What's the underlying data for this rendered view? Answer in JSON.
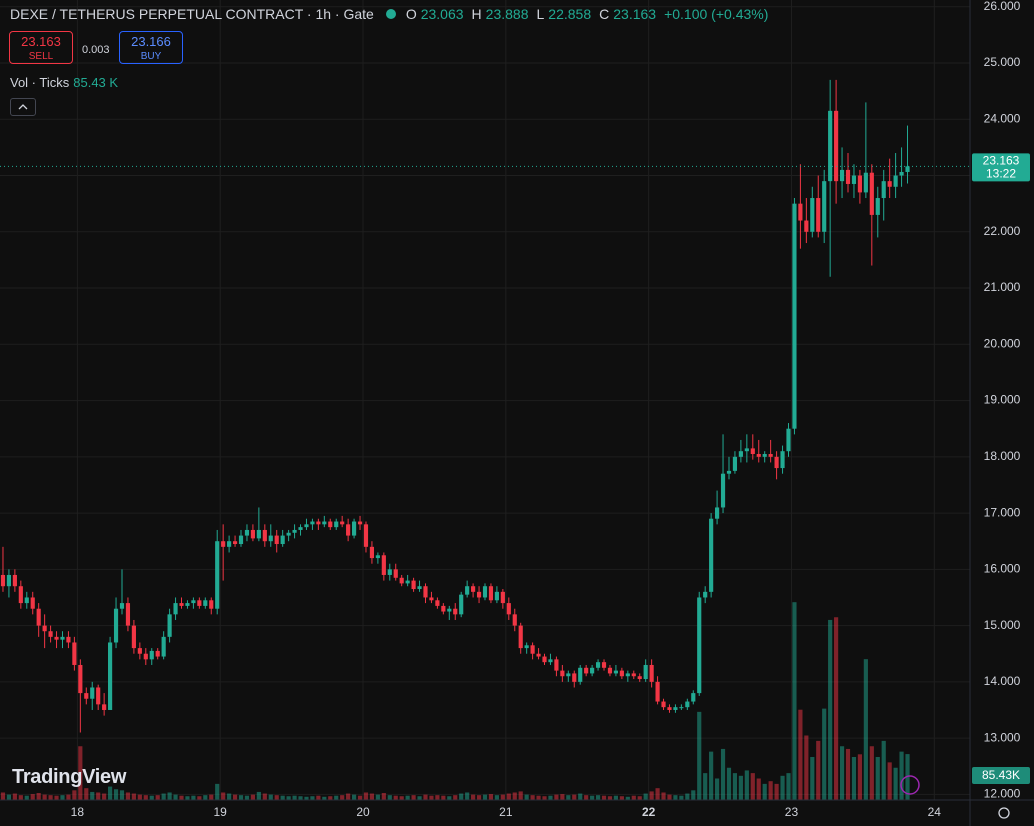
{
  "chart_data": {
    "type": "candlestick",
    "title": "DEXE / TETHERUS PERPETUAL CONTRACT · 1h · Gate",
    "ohlc_labels": [
      "O",
      "H",
      "L",
      "C"
    ],
    "change": "+0.100 (+0.43%)",
    "sell_price": 23.163,
    "sell_label": "SELL",
    "spread": 0.003,
    "buy_price": 23.166,
    "buy_label": "BUY",
    "volume_title": "Vol · Ticks",
    "volume_legend_value": "85.43 K",
    "volume_axis_label": "85.43K",
    "countdown": "13:22",
    "logo": "TradingView",
    "up_color": "#22ab94",
    "down_color": "#f23645",
    "grid": true,
    "xlim": [
      -0.5,
      162.5
    ],
    "xticks": [
      {
        "value": 12.5,
        "label": "18"
      },
      {
        "value": 36.5,
        "label": "19"
      },
      {
        "value": 60.5,
        "label": "20"
      },
      {
        "value": 84.5,
        "label": "21"
      },
      {
        "value": 108.5,
        "label": "22"
      },
      {
        "value": 132.5,
        "label": "23"
      },
      {
        "value": 156.5,
        "label": "24"
      }
    ],
    "ylim": [
      11.9,
      26.12
    ],
    "yticks": [
      {
        "value": 12,
        "label": "12.000"
      },
      {
        "value": 13,
        "label": "13.000"
      },
      {
        "value": 14,
        "label": "14.000"
      },
      {
        "value": 15,
        "label": "15.000"
      },
      {
        "value": 16,
        "label": "16.000"
      },
      {
        "value": 17,
        "label": "17.000"
      },
      {
        "value": 18,
        "label": "18.000"
      },
      {
        "value": 19,
        "label": "19.000"
      },
      {
        "value": 20,
        "label": "20.000"
      },
      {
        "value": 21,
        "label": "21.000"
      },
      {
        "value": 22,
        "label": "22.000"
      },
      {
        "value": 23,
        "label": "23.000"
      },
      {
        "value": 24,
        "label": "24.000"
      },
      {
        "value": 25,
        "label": "25.000"
      },
      {
        "value": 26,
        "label": "26.000"
      }
    ],
    "vlim": [
      0,
      400
    ],
    "ohlc": [
      [
        15.9,
        16.4,
        15.6,
        15.7
      ],
      [
        15.7,
        16.0,
        15.5,
        15.9
      ],
      [
        15.9,
        16.0,
        15.6,
        15.7
      ],
      [
        15.7,
        15.8,
        15.3,
        15.4
      ],
      [
        15.4,
        15.6,
        15.3,
        15.5
      ],
      [
        15.5,
        15.6,
        15.2,
        15.3
      ],
      [
        15.3,
        15.4,
        14.8,
        15.0
      ],
      [
        15.0,
        15.2,
        14.6,
        14.9
      ],
      [
        14.9,
        15.0,
        14.7,
        14.8
      ],
      [
        14.8,
        14.9,
        14.6,
        14.75
      ],
      [
        14.75,
        14.9,
        14.6,
        14.8
      ],
      [
        14.8,
        14.9,
        14.6,
        14.7
      ],
      [
        14.7,
        14.8,
        14.2,
        14.3
      ],
      [
        14.3,
        14.4,
        13.1,
        13.8
      ],
      [
        13.8,
        13.9,
        13.6,
        13.7
      ],
      [
        13.7,
        14.0,
        13.5,
        13.9
      ],
      [
        13.9,
        13.95,
        13.5,
        13.6
      ],
      [
        13.6,
        13.8,
        13.4,
        13.5
      ],
      [
        13.5,
        14.8,
        13.5,
        14.7
      ],
      [
        14.7,
        15.5,
        14.6,
        15.3
      ],
      [
        15.3,
        16.0,
        15.2,
        15.4
      ],
      [
        15.4,
        15.5,
        14.9,
        15.0
      ],
      [
        15.0,
        15.1,
        14.5,
        14.6
      ],
      [
        14.6,
        14.7,
        14.4,
        14.5
      ],
      [
        14.5,
        14.6,
        14.3,
        14.4
      ],
      [
        14.4,
        14.6,
        14.3,
        14.55
      ],
      [
        14.55,
        14.6,
        14.4,
        14.45
      ],
      [
        14.45,
        14.9,
        14.4,
        14.8
      ],
      [
        14.8,
        15.3,
        14.7,
        15.2
      ],
      [
        15.2,
        15.5,
        15.1,
        15.4
      ],
      [
        15.4,
        15.5,
        15.3,
        15.35
      ],
      [
        15.35,
        15.45,
        15.3,
        15.4
      ],
      [
        15.4,
        15.5,
        15.3,
        15.45
      ],
      [
        15.45,
        15.5,
        15.3,
        15.35
      ],
      [
        15.35,
        15.5,
        15.3,
        15.45
      ],
      [
        15.45,
        15.5,
        15.2,
        15.3
      ],
      [
        15.3,
        16.7,
        15.2,
        16.5
      ],
      [
        16.5,
        16.8,
        15.8,
        16.4
      ],
      [
        16.4,
        16.6,
        16.3,
        16.5
      ],
      [
        16.5,
        16.6,
        16.4,
        16.45
      ],
      [
        16.45,
        16.7,
        16.4,
        16.6
      ],
      [
        16.6,
        16.8,
        16.5,
        16.7
      ],
      [
        16.7,
        16.8,
        16.5,
        16.55
      ],
      [
        16.55,
        17.1,
        16.5,
        16.7
      ],
      [
        16.7,
        16.8,
        16.4,
        16.5
      ],
      [
        16.5,
        16.8,
        16.4,
        16.6
      ],
      [
        16.6,
        16.7,
        16.3,
        16.45
      ],
      [
        16.45,
        16.7,
        16.4,
        16.6
      ],
      [
        16.6,
        16.7,
        16.5,
        16.65
      ],
      [
        16.65,
        16.8,
        16.55,
        16.7
      ],
      [
        16.7,
        16.8,
        16.6,
        16.75
      ],
      [
        16.75,
        16.9,
        16.7,
        16.8
      ],
      [
        16.8,
        16.9,
        16.7,
        16.85
      ],
      [
        16.85,
        16.9,
        16.7,
        16.8
      ],
      [
        16.8,
        16.95,
        16.75,
        16.85
      ],
      [
        16.85,
        16.9,
        16.7,
        16.75
      ],
      [
        16.75,
        16.9,
        16.7,
        16.85
      ],
      [
        16.85,
        16.95,
        16.75,
        16.8
      ],
      [
        16.8,
        16.9,
        16.5,
        16.6
      ],
      [
        16.6,
        16.9,
        16.55,
        16.85
      ],
      [
        16.85,
        16.95,
        16.7,
        16.8
      ],
      [
        16.8,
        16.85,
        16.3,
        16.4
      ],
      [
        16.4,
        16.5,
        16.1,
        16.2
      ],
      [
        16.2,
        16.3,
        16.1,
        16.25
      ],
      [
        16.25,
        16.3,
        15.8,
        15.9
      ],
      [
        15.9,
        16.1,
        15.8,
        16.0
      ],
      [
        16.0,
        16.1,
        15.8,
        15.85
      ],
      [
        15.85,
        15.9,
        15.7,
        15.75
      ],
      [
        15.75,
        15.9,
        15.7,
        15.8
      ],
      [
        15.8,
        15.85,
        15.6,
        15.65
      ],
      [
        15.65,
        15.8,
        15.6,
        15.7
      ],
      [
        15.7,
        15.75,
        15.4,
        15.5
      ],
      [
        15.5,
        15.6,
        15.4,
        15.45
      ],
      [
        15.45,
        15.5,
        15.3,
        15.35
      ],
      [
        15.35,
        15.4,
        15.2,
        15.25
      ],
      [
        15.25,
        15.35,
        15.1,
        15.3
      ],
      [
        15.3,
        15.4,
        15.1,
        15.2
      ],
      [
        15.2,
        15.6,
        15.15,
        15.55
      ],
      [
        15.55,
        15.8,
        15.5,
        15.7
      ],
      [
        15.7,
        15.75,
        15.5,
        15.6
      ],
      [
        15.6,
        15.7,
        15.4,
        15.5
      ],
      [
        15.5,
        15.75,
        15.45,
        15.7
      ],
      [
        15.7,
        15.75,
        15.4,
        15.45
      ],
      [
        15.45,
        15.7,
        15.4,
        15.6
      ],
      [
        15.6,
        15.65,
        15.3,
        15.4
      ],
      [
        15.4,
        15.5,
        15.1,
        15.2
      ],
      [
        15.2,
        15.3,
        14.9,
        15.0
      ],
      [
        15.0,
        15.05,
        14.5,
        14.6
      ],
      [
        14.6,
        14.7,
        14.5,
        14.65
      ],
      [
        14.65,
        14.7,
        14.4,
        14.5
      ],
      [
        14.5,
        14.6,
        14.4,
        14.45
      ],
      [
        14.45,
        14.5,
        14.3,
        14.35
      ],
      [
        14.35,
        14.5,
        14.3,
        14.4
      ],
      [
        14.4,
        14.45,
        14.1,
        14.2
      ],
      [
        14.2,
        14.3,
        14.0,
        14.1
      ],
      [
        14.1,
        14.2,
        14.0,
        14.15
      ],
      [
        14.15,
        14.2,
        13.9,
        14.0
      ],
      [
        14.0,
        14.3,
        13.95,
        14.25
      ],
      [
        14.25,
        14.3,
        14.1,
        14.15
      ],
      [
        14.15,
        14.3,
        14.1,
        14.25
      ],
      [
        14.25,
        14.4,
        14.2,
        14.35
      ],
      [
        14.35,
        14.4,
        14.2,
        14.25
      ],
      [
        14.25,
        14.3,
        14.1,
        14.15
      ],
      [
        14.15,
        14.3,
        14.1,
        14.2
      ],
      [
        14.2,
        14.25,
        14.05,
        14.1
      ],
      [
        14.1,
        14.2,
        14.0,
        14.15
      ],
      [
        14.15,
        14.2,
        14.05,
        14.1
      ],
      [
        14.1,
        14.15,
        14.0,
        14.05
      ],
      [
        14.05,
        14.4,
        14.0,
        14.3
      ],
      [
        14.3,
        14.4,
        13.9,
        14.0
      ],
      [
        14.0,
        14.1,
        13.6,
        13.65
      ],
      [
        13.65,
        13.7,
        13.5,
        13.55
      ],
      [
        13.55,
        13.6,
        13.45,
        13.5
      ],
      [
        13.5,
        13.6,
        13.45,
        13.55
      ],
      [
        13.55,
        13.6,
        13.5,
        13.55
      ],
      [
        13.55,
        13.7,
        13.5,
        13.65
      ],
      [
        13.65,
        13.85,
        13.6,
        13.8
      ],
      [
        13.8,
        15.6,
        13.75,
        15.5
      ],
      [
        15.5,
        15.7,
        15.4,
        15.6
      ],
      [
        15.6,
        17.0,
        15.5,
        16.9
      ],
      [
        16.9,
        17.4,
        16.8,
        17.1
      ],
      [
        17.1,
        18.4,
        17.0,
        17.7
      ],
      [
        17.7,
        18.0,
        17.6,
        17.75
      ],
      [
        17.75,
        18.1,
        17.7,
        18.0
      ],
      [
        18.0,
        18.3,
        17.9,
        18.1
      ],
      [
        18.1,
        18.4,
        17.9,
        18.15
      ],
      [
        18.15,
        18.4,
        17.95,
        18.05
      ],
      [
        18.05,
        18.3,
        17.9,
        18.0
      ],
      [
        18.0,
        18.1,
        17.9,
        18.05
      ],
      [
        18.05,
        18.3,
        17.9,
        18.0
      ],
      [
        18.0,
        18.1,
        17.6,
        17.8
      ],
      [
        17.8,
        18.2,
        17.7,
        18.1
      ],
      [
        18.1,
        18.6,
        18.0,
        18.5
      ],
      [
        18.5,
        22.6,
        18.4,
        22.5
      ],
      [
        22.5,
        23.2,
        21.7,
        22.2
      ],
      [
        22.2,
        22.6,
        21.8,
        22.0
      ],
      [
        22.0,
        22.8,
        21.9,
        22.6
      ],
      [
        22.6,
        23.0,
        21.9,
        22.0
      ],
      [
        22.0,
        23.1,
        21.8,
        22.9
      ],
      [
        22.9,
        24.7,
        21.2,
        24.15
      ],
      [
        24.15,
        24.7,
        22.5,
        22.9
      ],
      [
        22.9,
        23.5,
        22.6,
        23.1
      ],
      [
        23.1,
        23.4,
        22.7,
        22.85
      ],
      [
        22.85,
        23.2,
        22.6,
        23.0
      ],
      [
        23.0,
        23.1,
        22.5,
        22.7
      ],
      [
        22.7,
        24.3,
        22.6,
        23.05
      ],
      [
        23.05,
        23.2,
        21.4,
        22.3
      ],
      [
        22.3,
        22.8,
        21.9,
        22.6
      ],
      [
        22.6,
        23.1,
        22.2,
        22.9
      ],
      [
        22.9,
        23.3,
        22.6,
        22.8
      ],
      [
        22.8,
        23.4,
        22.6,
        23.0
      ],
      [
        23.0,
        23.5,
        22.8,
        23.063
      ],
      [
        23.063,
        23.888,
        22.858,
        23.163
      ]
    ],
    "volume": [
      14,
      10,
      12,
      9,
      8,
      11,
      13,
      10,
      9,
      8,
      9,
      10,
      18,
      100,
      22,
      15,
      14,
      12,
      25,
      20,
      18,
      14,
      12,
      10,
      9,
      8,
      9,
      12,
      14,
      10,
      8,
      7,
      8,
      7,
      9,
      10,
      30,
      14,
      12,
      10,
      9,
      8,
      10,
      15,
      12,
      10,
      9,
      8,
      7,
      8,
      7,
      6,
      7,
      8,
      6,
      7,
      8,
      9,
      12,
      10,
      8,
      14,
      12,
      10,
      13,
      9,
      8,
      7,
      8,
      9,
      7,
      10,
      8,
      9,
      8,
      7,
      9,
      12,
      14,
      10,
      9,
      10,
      11,
      9,
      10,
      12,
      14,
      16,
      10,
      9,
      8,
      7,
      8,
      10,
      11,
      9,
      10,
      12,
      9,
      8,
      9,
      8,
      7,
      8,
      7,
      6,
      8,
      7,
      12,
      16,
      22,
      14,
      10,
      9,
      8,
      12,
      18,
      164,
      50,
      90,
      40,
      95,
      60,
      50,
      45,
      55,
      50,
      40,
      30,
      35,
      30,
      45,
      50,
      368,
      168,
      120,
      80,
      110,
      170,
      335,
      340,
      100,
      95,
      80,
      85,
      262,
      100,
      80,
      110,
      70,
      60,
      90,
      85.43
    ]
  }
}
